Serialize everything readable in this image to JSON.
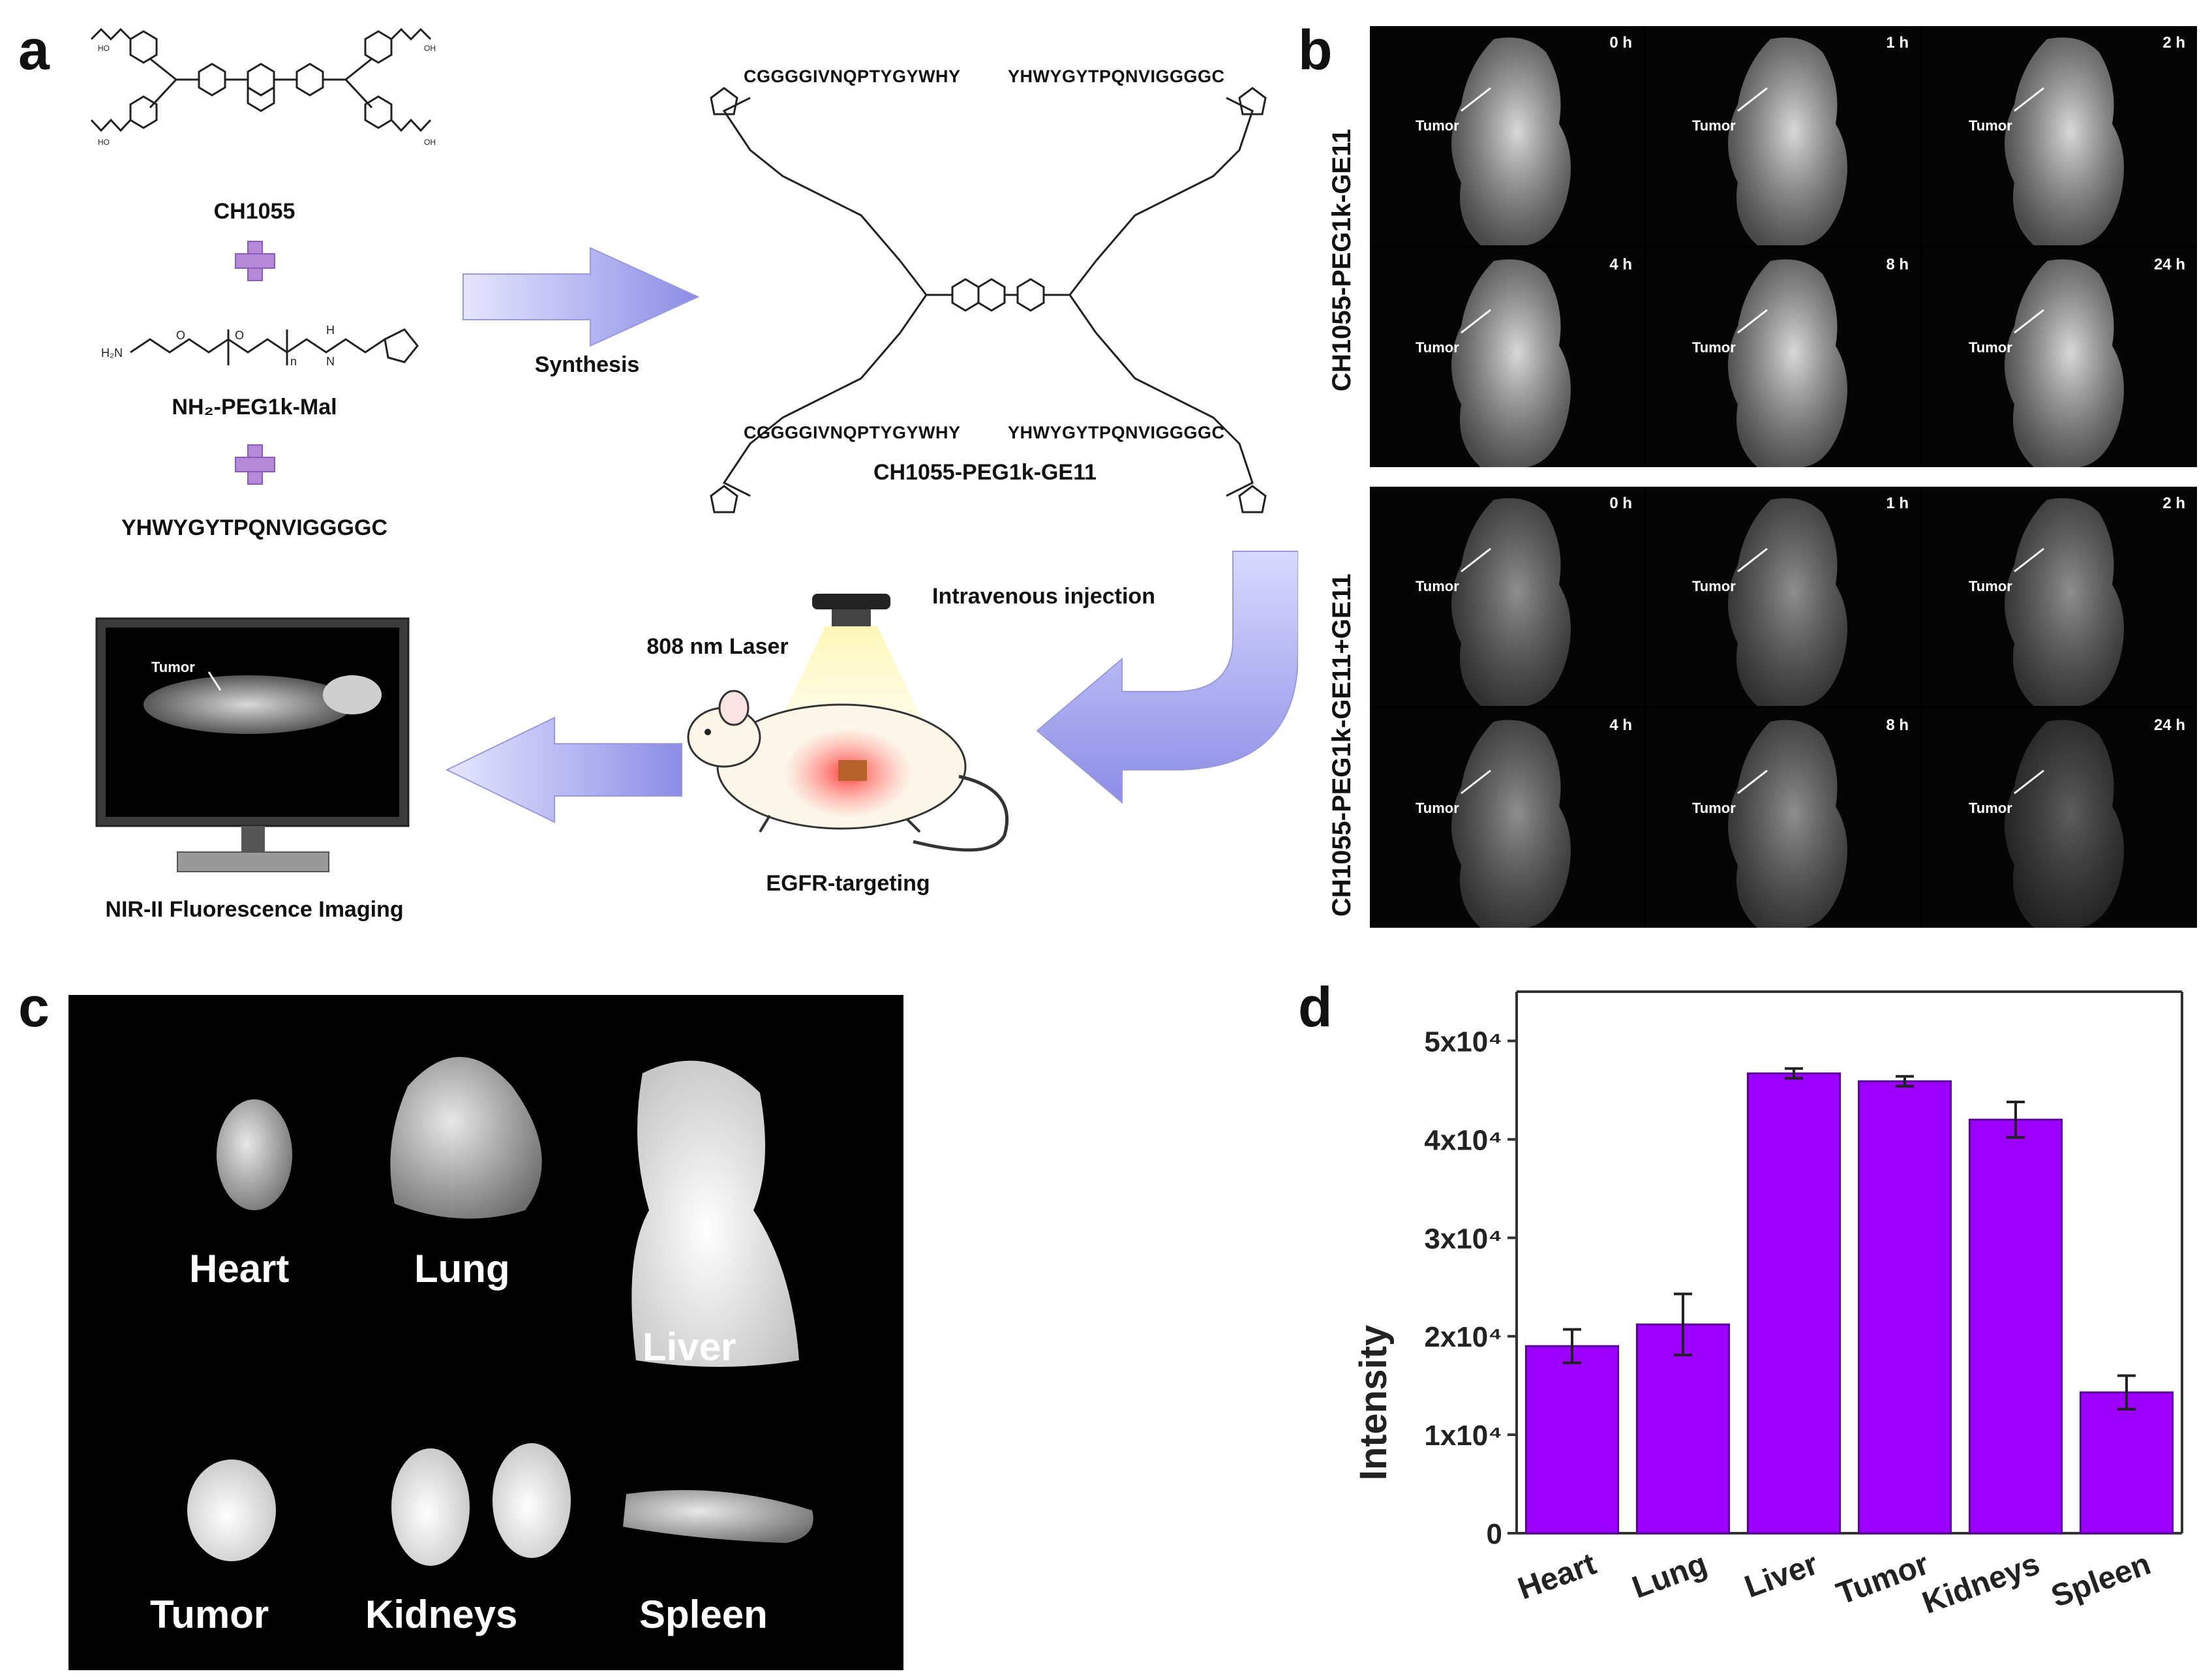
{
  "panel_labels": {
    "a": "a",
    "b": "b",
    "c": "c",
    "d": "d"
  },
  "panel_a": {
    "compound1": "CH1055",
    "compound2": "NH₂-PEG1k-Mal",
    "peptide": "YHWYGYTPQNVIGGGGC",
    "synthesis": "Synthesis",
    "product": "CH1055-PEG1k-GE11",
    "seq_tl": "CGGGGIVNQPTYGYWHY",
    "seq_tr": "YHWYGYTPQNVIGGGGC",
    "seq_bl": "CGGGGIVNQPTYGYWHY",
    "seq_br": "YHWYGYTPQNVIGGGGC",
    "injection": "Intravenous injection",
    "laser": "808 nm Laser",
    "targeting": "EGFR-targeting",
    "imaging": "NIR-II  Fluorescence Imaging",
    "monitor_tumor": "Tumor"
  },
  "panel_b": {
    "row1_label": "CH1055-PEG1k-GE11",
    "row2_label": "CH1055-PEG1k-GE11+GE11",
    "tumor_label": "Tumor",
    "times": [
      "0 h",
      "1 h",
      "2 h",
      "4 h",
      "8 h",
      "24 h"
    ]
  },
  "panel_c": {
    "organs": [
      "Heart",
      "Lung",
      "Liver",
      "Tumor",
      "Kidneys",
      "Spleen"
    ]
  },
  "chart_data": {
    "type": "bar",
    "categories": [
      "Heart",
      "Lung",
      "Liver",
      "Tumor",
      "Kidneys",
      "Spleen"
    ],
    "values": [
      19000,
      21200,
      46700,
      45900,
      42000,
      14300
    ],
    "errors": [
      1700,
      3100,
      500,
      500,
      1800,
      1700
    ],
    "ylabel": "Intensity",
    "ylim": [
      0,
      55000
    ],
    "ticks": [
      0,
      10000,
      20000,
      30000,
      40000,
      50000
    ],
    "tick_labels": [
      "0",
      "1x10⁴",
      "2x10⁴",
      "3x10⁴",
      "4x10⁴",
      "5x10⁴"
    ],
    "bar_color": "#9b00ff"
  }
}
